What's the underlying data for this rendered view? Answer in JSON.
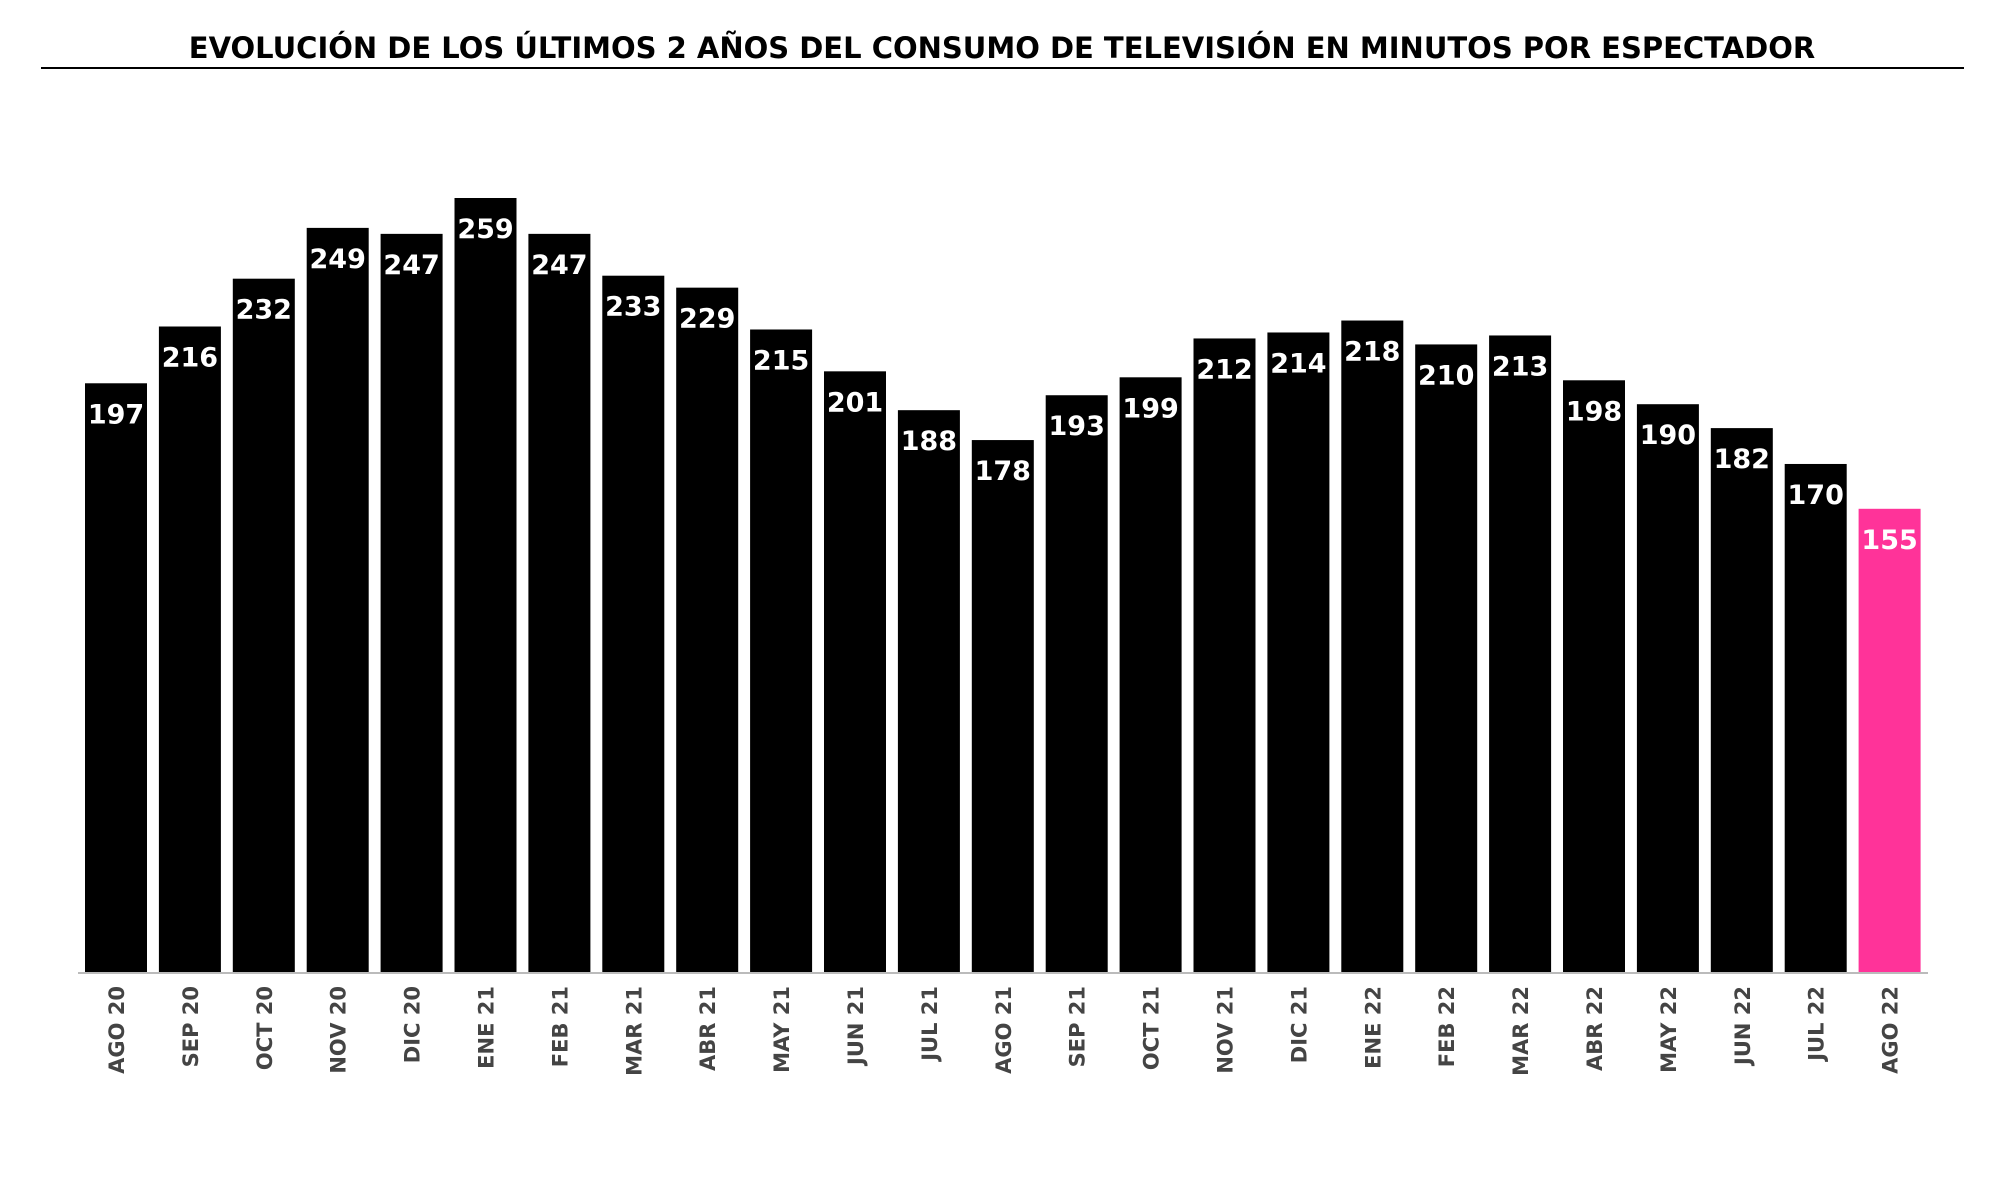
{
  "chart_data": {
    "type": "bar",
    "title": "EVOLUCIÓN DE LOS ÚLTIMOS 2 AÑOS DEL CONSUMO DE TELEVISIÓN EN MINUTOS POR ESPECTADOR",
    "categories": [
      "AGO 20",
      "SEP 20",
      "OCT 20",
      "NOV 20",
      "DIC 20",
      "ENE 21",
      "FEB 21",
      "MAR 21",
      "ABR 21",
      "MAY 21",
      "JUN 21",
      "JUL 21",
      "AGO 21",
      "SEP 21",
      "OCT 21",
      "NOV 21",
      "DIC 21",
      "ENE 22",
      "FEB 22",
      "MAR 22",
      "ABR 22",
      "MAY 22",
      "JUN 22",
      "JUL 22",
      "AGO 22"
    ],
    "values": [
      197,
      216,
      232,
      249,
      247,
      259,
      247,
      233,
      229,
      215,
      201,
      188,
      178,
      193,
      199,
      212,
      214,
      218,
      210,
      213,
      198,
      190,
      182,
      170,
      155
    ],
    "colors": [
      "#000000",
      "#000000",
      "#000000",
      "#000000",
      "#000000",
      "#000000",
      "#000000",
      "#000000",
      "#000000",
      "#000000",
      "#000000",
      "#000000",
      "#000000",
      "#000000",
      "#000000",
      "#000000",
      "#000000",
      "#000000",
      "#000000",
      "#000000",
      "#000000",
      "#000000",
      "#000000",
      "#000000",
      "#ff3399"
    ],
    "grid": false
  }
}
